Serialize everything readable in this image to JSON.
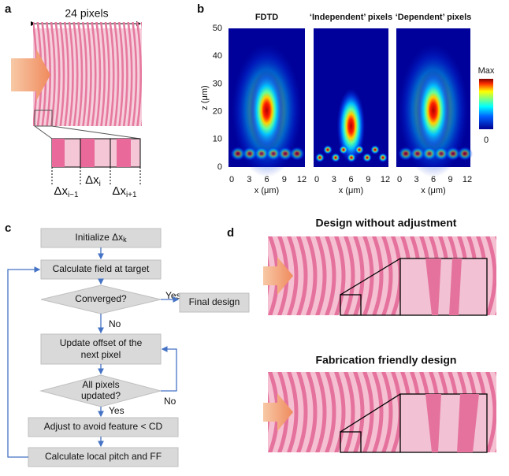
{
  "panel_a": {
    "label": "a",
    "width_label": "24 pixels",
    "pixel_labels": [
      {
        "symbol": "Δx",
        "subscript": "i−1"
      },
      {
        "symbol": "Δx",
        "subscript": "i"
      },
      {
        "symbol": "Δx",
        "subscript": "i+1"
      }
    ]
  },
  "panel_b": {
    "label": "b",
    "titles": [
      "FDTD",
      "‘Independent’ pixels",
      "‘Dependent’ pixels"
    ],
    "y_axis_label": "z (μm)",
    "y_ticks": [
      0,
      10,
      20,
      30,
      40,
      50
    ],
    "x_axis_label": "x (μm)",
    "x_ticks": [
      0,
      3,
      6,
      9,
      12
    ],
    "colorbar": {
      "max": "Max",
      "min": "0"
    }
  },
  "panel_c": {
    "label": "c",
    "init": {
      "text": "Initialize Δx",
      "subscript": "k"
    },
    "calc_field": "Calculate field at target",
    "converged": "Converged?",
    "yes1": "Yes",
    "final": "Final design",
    "no1": "No",
    "update": [
      "Update offset of the",
      "next pixel"
    ],
    "all_updated": [
      "All pixels",
      "updated?"
    ],
    "no2": "No",
    "yes2": "Yes",
    "adjust": "Adjust to avoid feature < CD",
    "pitch": "Calculate local pitch and FF"
  },
  "panel_d": {
    "label": "d",
    "title_top": "Design without adjustment",
    "title_bottom": "Fabrication friendly design"
  }
}
